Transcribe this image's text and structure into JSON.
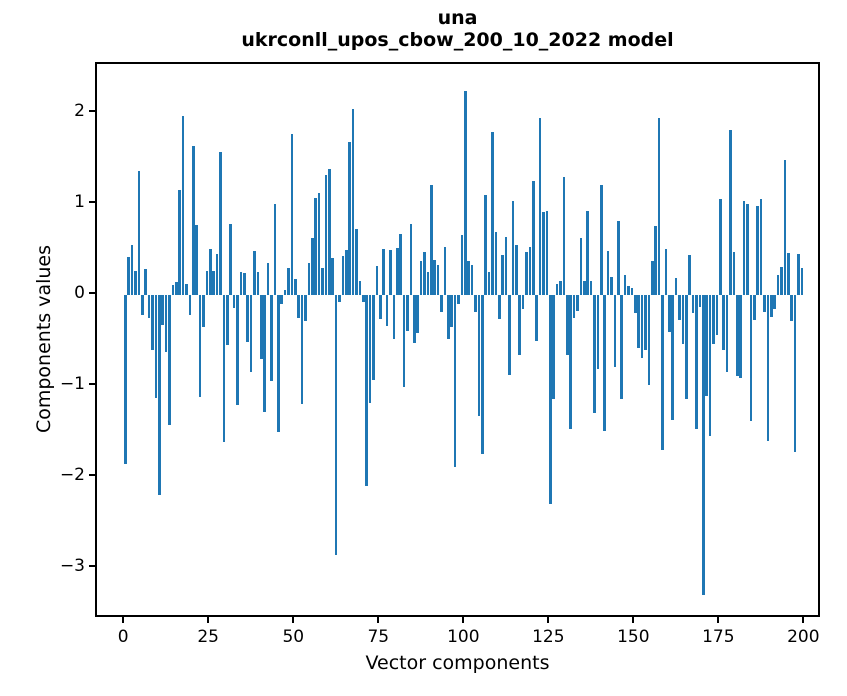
{
  "title": {
    "line1": "una",
    "line2": "ukrconll_upos_cbow_200_10_2022 model"
  },
  "chart_data": {
    "type": "bar",
    "title": "una",
    "subtitle": "ukrconll_upos_cbow_200_10_2022 model",
    "xlabel": "Vector components",
    "ylabel": "Components values",
    "bar_color": "#1f77b4",
    "axis_color": "#000000",
    "background_color": "#ffffff",
    "grid": false,
    "legend_position": "none",
    "xlim": [
      -8.3,
      204.9
    ],
    "ylim": [
      -3.56,
      2.54
    ],
    "xticks": [
      0,
      25,
      50,
      75,
      100,
      125,
      150,
      175,
      200
    ],
    "yticks": [
      2,
      1,
      0,
      -1,
      -2,
      -3
    ],
    "bar_width_units": 0.8,
    "n_components": 200,
    "values": [
      -1.86,
      0.42,
      0.55,
      0.26,
      1.36,
      -0.22,
      0.29,
      -0.25,
      -0.6,
      -1.13,
      -2.2,
      -0.33,
      -0.63,
      -1.43,
      0.11,
      0.15,
      1.16,
      1.97,
      0.12,
      -0.22,
      1.64,
      0.77,
      -1.12,
      -0.35,
      0.27,
      0.51,
      0.26,
      0.45,
      1.57,
      -1.62,
      -0.55,
      0.78,
      -0.14,
      -1.21,
      0.25,
      0.24,
      -0.52,
      -0.85,
      0.48,
      0.25,
      -0.7,
      -1.29,
      0.35,
      -0.95,
      1.0,
      -1.5,
      -0.1,
      0.06,
      0.3,
      1.77,
      0.18,
      -0.25,
      -1.2,
      -0.29,
      0.35,
      0.63,
      1.07,
      1.12,
      0.3,
      1.32,
      1.39,
      0.41,
      -2.86,
      -0.08,
      0.43,
      0.5,
      1.68,
      2.05,
      0.73,
      0.16,
      -0.08,
      -2.1,
      -1.19,
      -0.93,
      0.32,
      -0.26,
      0.51,
      -0.34,
      0.5,
      -0.48,
      0.52,
      0.67,
      -1.01,
      -0.4,
      0.78,
      -0.53,
      -0.42,
      0.38,
      0.47,
      0.25,
      1.21,
      0.39,
      0.33,
      -0.19,
      0.53,
      -0.48,
      -0.35,
      -1.89,
      -0.1,
      0.66,
      2.24,
      0.38,
      0.33,
      -0.19,
      -1.33,
      -1.75,
      1.1,
      0.25,
      1.79,
      0.69,
      -0.26,
      0.44,
      0.64,
      -0.88,
      1.03,
      0.55,
      -0.66,
      -0.15,
      0.47,
      0.53,
      1.25,
      -0.5,
      1.95,
      0.91,
      0.93,
      -2.3,
      -1.14,
      0.12,
      0.16,
      1.3,
      -0.66,
      -1.47,
      -0.25,
      -0.17,
      0.63,
      0.16,
      0.92,
      0.16,
      -1.3,
      -0.81,
      1.21,
      -1.49,
      0.48,
      0.2,
      -0.79,
      0.82,
      -1.14,
      0.22,
      0.1,
      0.08,
      -0.2,
      -0.58,
      -0.69,
      -0.6,
      -0.99,
      0.37,
      0.76,
      1.95,
      -1.7,
      0.51,
      -0.41,
      -1.37,
      0.19,
      -0.27,
      -0.54,
      -1.14,
      0.44,
      -0.2,
      -1.47,
      -0.13,
      -3.3,
      -1.11,
      -1.55,
      -0.54,
      -0.44,
      1.06,
      -0.6,
      -0.85,
      1.81,
      0.47,
      -0.89,
      -0.91,
      1.03,
      1.0,
      -1.38,
      -0.27,
      0.98,
      1.06,
      -0.19,
      -1.6,
      -0.24,
      -0.15,
      0.22,
      0.31,
      1.49,
      0.46,
      -0.29,
      -1.73,
      0.45,
      0.3
    ]
  }
}
